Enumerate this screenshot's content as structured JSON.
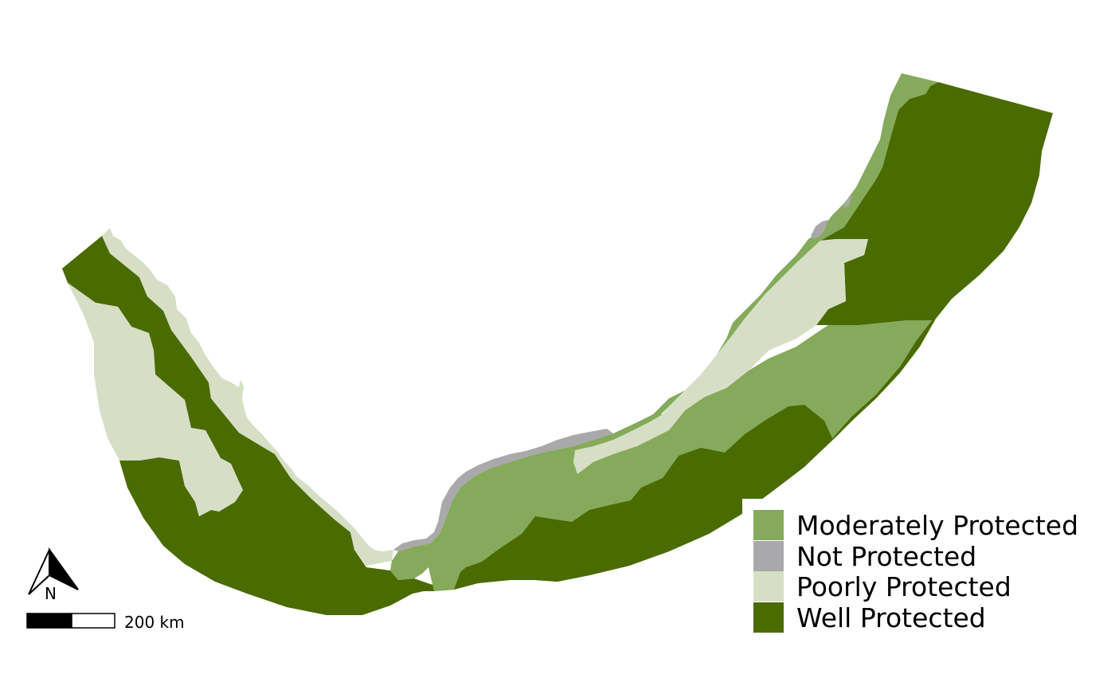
{
  "colors": {
    "well": "#4a6b00",
    "moderate": "#85aa5b",
    "poor": "#d6dfc5",
    "none": "#a9a8aa"
  },
  "legend": {
    "items": [
      {
        "label": "Moderately Protected",
        "color": "#85aa5b"
      },
      {
        "label": "Not Protected",
        "color": "#a9a8aa"
      },
      {
        "label": "Poorly Protected",
        "color": "#d6dfc5"
      },
      {
        "label": "Well Protected",
        "color": "#4a6b00"
      }
    ]
  },
  "north_arrow": {
    "label": "N",
    "icon": "north-arrow-icon"
  },
  "scale_bar": {
    "label": "200 km"
  }
}
